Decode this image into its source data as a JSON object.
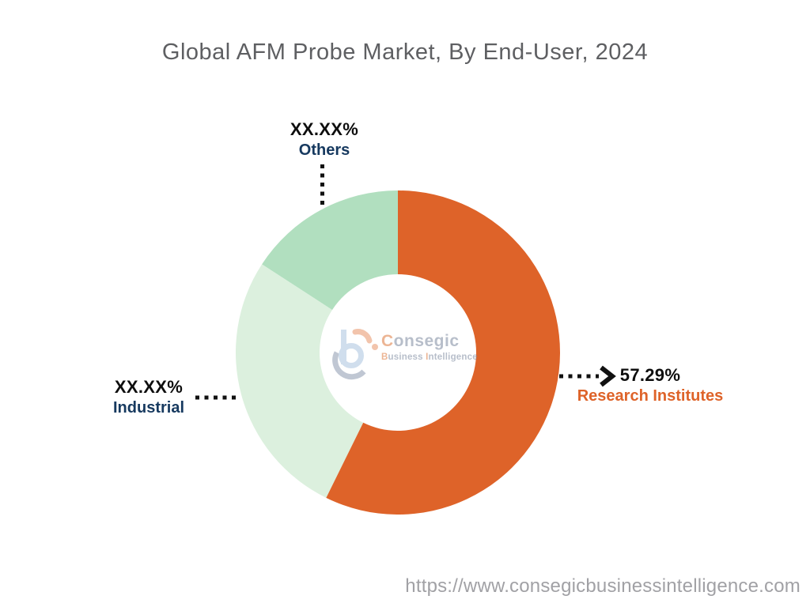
{
  "title": "Global AFM Probe Market, By End-User, 2024",
  "footer_url": "https://www.consegicbusinessintelligence.com",
  "logo": {
    "brand_first_letter": "C",
    "brand_rest": "onsegic",
    "sub_first_letter": "B",
    "sub_first_rest": "usiness ",
    "sub_second_letter": "I",
    "sub_second_rest": "ntelligence"
  },
  "colors": {
    "research_institutes": "#DE6329",
    "industrial": "#DCF0DE",
    "others": "#B1DFBF",
    "category_label_navy": "#16395F",
    "category_label_orange": "#DE6329",
    "value_label_black": "#0E0E0E",
    "title_gray": "#5E5F62",
    "footer_gray": "#A1A1A5"
  },
  "chart_data": {
    "type": "pie",
    "subtype": "donut",
    "title": "Global AFM Probe Market, By End-User, 2024",
    "unit": "%",
    "direction": "clockwise",
    "start_angle_deg": 0,
    "inner_radius_ratio": 0.48,
    "legend_position": "callout-labels",
    "segments": [
      {
        "label": "Research Institutes",
        "value": 57.29,
        "value_label": "57.29%",
        "color": "#DE6329",
        "label_color": "#DE6329"
      },
      {
        "label": "Industrial",
        "value": 26.88,
        "value_label": "XX.XX%",
        "color": "#DCF0DE",
        "label_color": "#16395F"
      },
      {
        "label": "Others",
        "value": 15.83,
        "value_label": "XX.XX%",
        "color": "#B1DFBF",
        "label_color": "#16395F"
      }
    ]
  }
}
